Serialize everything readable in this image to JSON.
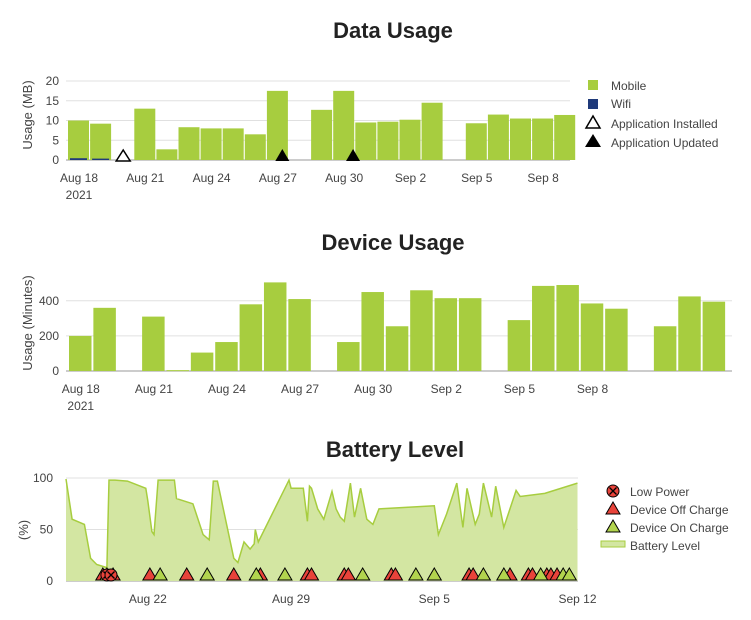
{
  "colors": {
    "bar": "#a7cd3f",
    "wifi": "#1f3a7a",
    "battery_fill": "#d3e6a2",
    "battery_line": "#a7cd3f",
    "marker_red": "#e8433a",
    "marker_green": "#b2d44e"
  },
  "chart_data": [
    {
      "type": "bar",
      "title": "Data Usage",
      "ylabel": "Usage (MB)",
      "ylim": [
        0,
        20
      ],
      "yticks": [
        "0",
        "5",
        "10",
        "15",
        "20"
      ],
      "grid": true,
      "legend_position": "right",
      "x_start": "2021-08-18",
      "x_tick_labels": [
        {
          "day": 0,
          "label": "Aug 18",
          "sub": "2021"
        },
        {
          "day": 3,
          "label": "Aug 21"
        },
        {
          "day": 6,
          "label": "Aug 24"
        },
        {
          "day": 9,
          "label": "Aug 27"
        },
        {
          "day": 12,
          "label": "Aug 30"
        },
        {
          "day": 15,
          "label": "Sep 2"
        },
        {
          "day": 18,
          "label": "Sep 5"
        },
        {
          "day": 21,
          "label": "Sep 8"
        }
      ],
      "series": [
        {
          "name": "Mobile",
          "values": [
            10,
            9.2,
            null,
            13,
            2.7,
            8.3,
            8,
            8,
            6.5,
            17.5,
            null,
            12.7,
            17.5,
            9.5,
            9.7,
            10.2,
            14.5,
            null,
            9.3,
            11.5,
            10.5,
            10.5,
            11.4
          ]
        },
        {
          "name": "Wifi",
          "values": [
            0.2,
            0.1,
            null,
            null,
            null,
            null,
            null,
            null,
            null,
            null,
            null,
            null,
            null,
            null,
            null,
            null,
            null,
            null,
            null,
            null,
            null,
            null,
            null
          ]
        }
      ],
      "events": [
        {
          "name": "Application Installed",
          "days": [
            2
          ]
        },
        {
          "name": "Application Updated",
          "days": [
            9.2,
            12.4
          ]
        }
      ],
      "legend": [
        "Mobile",
        "Wifi",
        "Application Installed",
        "Application Updated"
      ]
    },
    {
      "type": "bar",
      "title": "Device Usage",
      "ylabel": "Usage (Minutes)",
      "ylim": [
        0,
        530
      ],
      "yticks": [
        "0",
        "200",
        "400"
      ],
      "grid": true,
      "x_start": "2021-08-18",
      "x_tick_labels": [
        {
          "day": 0,
          "label": "Aug 18",
          "sub": "2021"
        },
        {
          "day": 3,
          "label": "Aug 21"
        },
        {
          "day": 6,
          "label": "Aug 24"
        },
        {
          "day": 9,
          "label": "Aug 27"
        },
        {
          "day": 12,
          "label": "Aug 30"
        },
        {
          "day": 15,
          "label": "Sep 2"
        },
        {
          "day": 18,
          "label": "Sep 5"
        },
        {
          "day": 21,
          "label": "Sep 8"
        }
      ],
      "series": [
        {
          "name": "Usage",
          "values": [
            200,
            360,
            null,
            310,
            5,
            105,
            165,
            380,
            505,
            410,
            null,
            165,
            450,
            255,
            460,
            415,
            415,
            null,
            290,
            485,
            490,
            385,
            355,
            null,
            255,
            425,
            395
          ]
        }
      ]
    },
    {
      "type": "area",
      "title": "Battery Level",
      "ylabel": "(%)",
      "ylim": [
        0,
        100
      ],
      "yticks": [
        "0",
        "50",
        "100"
      ],
      "grid": true,
      "legend_position": "right",
      "x_start": "2021-08-18",
      "x_tick_labels": [
        {
          "day": 4,
          "label": "Aug 22"
        },
        {
          "day": 11,
          "label": "Aug 29"
        },
        {
          "day": 18,
          "label": "Sep 5"
        },
        {
          "day": 25,
          "label": "Sep 12"
        }
      ],
      "x": [
        0,
        0.3,
        0.9,
        1.2,
        1.5,
        2.0,
        2.1,
        2.4,
        3.0,
        3.9,
        4.0,
        4.2,
        4.3,
        4.5,
        5.3,
        5.4,
        6.2,
        6.7,
        7.0,
        7.2,
        7.4,
        8.2,
        8.4,
        8.7,
        9.0,
        9.2,
        9.25,
        9.4,
        10.9,
        11.0,
        11.1,
        11.6,
        11.8,
        11.9,
        12.0,
        12.3,
        12.6,
        13.0,
        13.2,
        13.4,
        13.6,
        13.9,
        14.1,
        14.4,
        14.7,
        15.0,
        15.3,
        18.0,
        18.2,
        18.6,
        19.1,
        19.4,
        19.6,
        20.0,
        20.2,
        20.4,
        20.8,
        21.0,
        21.4,
        22.0,
        22.2,
        23.4,
        25.0
      ],
      "series": [
        {
          "name": "Battery Level",
          "values": [
            99,
            60,
            55,
            22,
            16,
            13,
            98,
            98,
            97,
            90,
            78,
            48,
            45,
            98,
            98,
            80,
            75,
            45,
            40,
            97,
            97,
            22,
            18,
            38,
            31,
            36,
            50,
            38,
            98,
            90,
            90,
            90,
            58,
            92,
            90,
            70,
            60,
            87,
            70,
            62,
            58,
            95,
            62,
            90,
            60,
            55,
            70,
            73,
            45,
            65,
            95,
            52,
            90,
            55,
            65,
            95,
            62,
            92,
            52,
            88,
            82,
            85,
            95
          ]
        }
      ],
      "events": [
        {
          "name": "Low Power",
          "days": [
            2.0,
            2.2
          ]
        },
        {
          "name": "Device Off Charge",
          "days": [
            1.8,
            2.3,
            4.1,
            5.9,
            8.2,
            9.5,
            11.8,
            12.0,
            13.6,
            13.8,
            15.9,
            16.1,
            19.7,
            19.9,
            21.7,
            22.6,
            22.8,
            23.5,
            23.7,
            24.0
          ]
        },
        {
          "name": "Device On Charge",
          "days": [
            2.0,
            4.6,
            6.9,
            9.3,
            10.7,
            14.5,
            17.1,
            18.0,
            20.4,
            21.4,
            23.2,
            24.3,
            24.6
          ]
        }
      ],
      "legend": [
        "Low Power",
        "Device Off Charge",
        "Device On Charge",
        "Battery Level"
      ]
    }
  ]
}
